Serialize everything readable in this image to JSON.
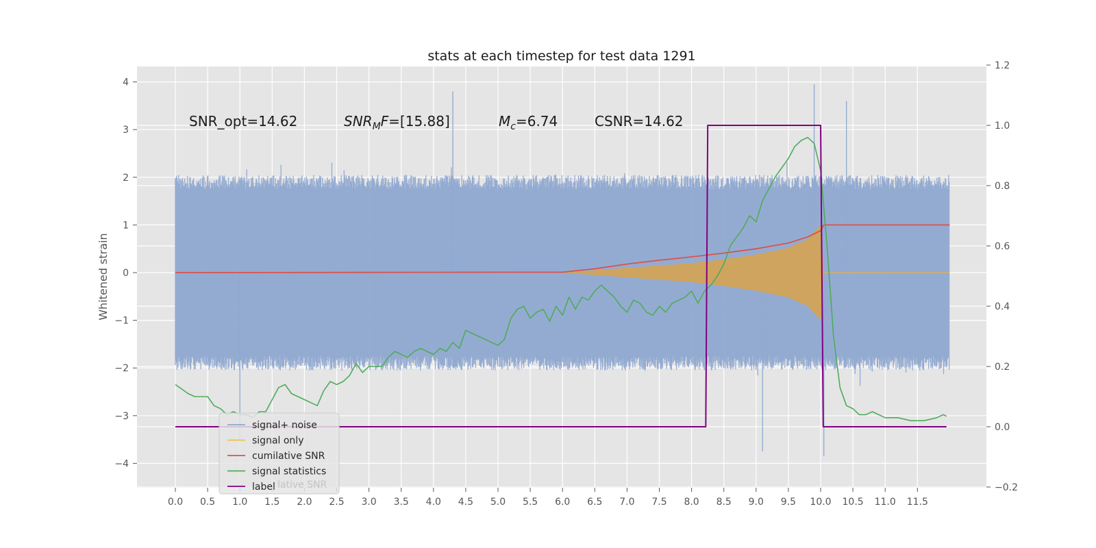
{
  "chart_data": {
    "type": "line",
    "title": "stats at each timestep for test data 1291",
    "ylabel": "Whitened strain",
    "ylabel_right": "",
    "xlabel": "",
    "xlim": [
      0,
      12
    ],
    "ylim": [
      -4.5,
      4.3
    ],
    "ylim_right": [
      -0.2,
      1.2
    ],
    "x_ticks": [
      "0.0",
      "0.5",
      "1.0",
      "1.5",
      "2.0",
      "2.5",
      "3.0",
      "3.5",
      "4.0",
      "4.5",
      "5.0",
      "5.5",
      "6.0",
      "6.5",
      "7.0",
      "7.5",
      "8.0",
      "8.5",
      "9.0",
      "9.5",
      "10.0",
      "10.5",
      "11.0",
      "11.5"
    ],
    "y_ticks": [
      "4",
      "3",
      "2",
      "1",
      "0",
      "−1",
      "−2",
      "−3",
      "−4"
    ],
    "y_ticks_right": [
      "1.2",
      "1.0",
      "0.8",
      "0.6",
      "0.4",
      "0.2",
      "0.0",
      "−0.2"
    ],
    "annotations": [
      {
        "id": "snr_opt",
        "text": "SNR_opt=14.62"
      },
      {
        "id": "snr_mf",
        "label_main": "SNR",
        "label_sub": "M",
        "label_tail": "F",
        "value": "=[15.88]"
      },
      {
        "id": "mc",
        "label_main": "M",
        "label_sub": "c",
        "value": "=6.74"
      },
      {
        "id": "csnr",
        "text": "CSNR=14.62"
      }
    ],
    "legend": {
      "placement": "lower-left",
      "entries": [
        {
          "label": "signal+ noise",
          "color": "#8fa8d0"
        },
        {
          "label": "signal only",
          "color": "#f0c04a"
        },
        {
          "label": "cumilative SNR",
          "color": "#d9524c"
        },
        {
          "label": "signal statistics",
          "color": "#4fab5b"
        },
        {
          "label": "label",
          "color": "#800080"
        }
      ],
      "ghost_text": "lative SNR"
    },
    "series": [
      {
        "name": "signal+ noise",
        "axis": "left",
        "color": "#8fa8d0",
        "description_envelope": {
          "typical_amplitude": 1.8,
          "peak_max": 3.95,
          "peak_min": -3.85,
          "x_start": 0.0,
          "x_end": 12.0
        }
      },
      {
        "name": "signal only",
        "axis": "left",
        "color": "#e0a84a",
        "envelope": {
          "x": [
            6.0,
            6.5,
            7.0,
            7.5,
            8.0,
            8.5,
            9.0,
            9.5,
            9.8,
            10.0,
            10.05
          ],
          "amplitude": [
            0.0,
            0.05,
            0.1,
            0.15,
            0.2,
            0.28,
            0.38,
            0.52,
            0.7,
            1.0,
            0.0
          ]
        }
      },
      {
        "name": "cumilative SNR",
        "axis": "left",
        "color": "#d9524c",
        "x": [
          0.0,
          6.0,
          6.5,
          7.0,
          7.5,
          8.0,
          8.5,
          9.0,
          9.5,
          9.8,
          10.0,
          10.05,
          12.0
        ],
        "y": [
          0.0,
          0.01,
          0.08,
          0.18,
          0.26,
          0.33,
          0.41,
          0.5,
          0.62,
          0.75,
          0.88,
          1.0,
          1.0
        ]
      },
      {
        "name": "signal statistics",
        "axis": "right",
        "color": "#4fab5b",
        "x": [
          0.0,
          0.2,
          0.3,
          0.4,
          0.5,
          0.6,
          0.7,
          0.8,
          0.9,
          1.0,
          1.1,
          1.2,
          1.3,
          1.4,
          1.5,
          1.6,
          1.7,
          1.8,
          1.9,
          2.0,
          2.1,
          2.2,
          2.3,
          2.4,
          2.5,
          2.6,
          2.7,
          2.8,
          2.9,
          3.0,
          3.1,
          3.2,
          3.3,
          3.4,
          3.5,
          3.6,
          3.7,
          3.8,
          3.9,
          4.0,
          4.1,
          4.2,
          4.3,
          4.4,
          4.5,
          4.6,
          4.7,
          4.8,
          4.9,
          5.0,
          5.1,
          5.2,
          5.3,
          5.4,
          5.5,
          5.6,
          5.7,
          5.8,
          5.9,
          6.0,
          6.1,
          6.2,
          6.3,
          6.4,
          6.5,
          6.6,
          6.7,
          6.8,
          6.9,
          7.0,
          7.1,
          7.2,
          7.3,
          7.4,
          7.5,
          7.6,
          7.7,
          7.8,
          7.9,
          8.0,
          8.1,
          8.2,
          8.3,
          8.4,
          8.5,
          8.6,
          8.7,
          8.8,
          8.9,
          9.0,
          9.1,
          9.2,
          9.3,
          9.4,
          9.5,
          9.6,
          9.7,
          9.8,
          9.9,
          10.0,
          10.1,
          10.2,
          10.3,
          10.4,
          10.5,
          10.6,
          10.7,
          10.8,
          10.9,
          11.0,
          11.2,
          11.4,
          11.6,
          11.8,
          11.9,
          11.95
        ],
        "y": [
          0.14,
          0.11,
          0.1,
          0.1,
          0.1,
          0.07,
          0.06,
          0.04,
          0.05,
          0.04,
          0.04,
          0.03,
          0.05,
          0.05,
          0.09,
          0.13,
          0.14,
          0.11,
          0.1,
          0.09,
          0.08,
          0.07,
          0.12,
          0.15,
          0.14,
          0.15,
          0.17,
          0.21,
          0.18,
          0.2,
          0.2,
          0.2,
          0.23,
          0.25,
          0.24,
          0.23,
          0.25,
          0.26,
          0.25,
          0.24,
          0.26,
          0.25,
          0.28,
          0.26,
          0.32,
          0.31,
          0.3,
          0.29,
          0.28,
          0.27,
          0.29,
          0.36,
          0.39,
          0.4,
          0.36,
          0.38,
          0.39,
          0.35,
          0.4,
          0.37,
          0.43,
          0.39,
          0.43,
          0.42,
          0.45,
          0.47,
          0.45,
          0.43,
          0.4,
          0.38,
          0.42,
          0.41,
          0.38,
          0.37,
          0.4,
          0.38,
          0.41,
          0.42,
          0.43,
          0.45,
          0.41,
          0.45,
          0.47,
          0.5,
          0.54,
          0.6,
          0.63,
          0.66,
          0.7,
          0.68,
          0.75,
          0.79,
          0.83,
          0.86,
          0.89,
          0.93,
          0.95,
          0.96,
          0.94,
          0.85,
          0.6,
          0.3,
          0.13,
          0.07,
          0.06,
          0.04,
          0.04,
          0.05,
          0.04,
          0.03,
          0.03,
          0.02,
          0.02,
          0.03,
          0.04,
          0.035
        ]
      },
      {
        "name": "label",
        "axis": "right",
        "color": "#800080",
        "x": [
          0.0,
          8.22,
          8.25,
          10.0,
          10.04,
          11.95
        ],
        "y": [
          0.0,
          0.0,
          1.0,
          1.0,
          0.0,
          0.0
        ]
      }
    ],
    "grid": true
  }
}
